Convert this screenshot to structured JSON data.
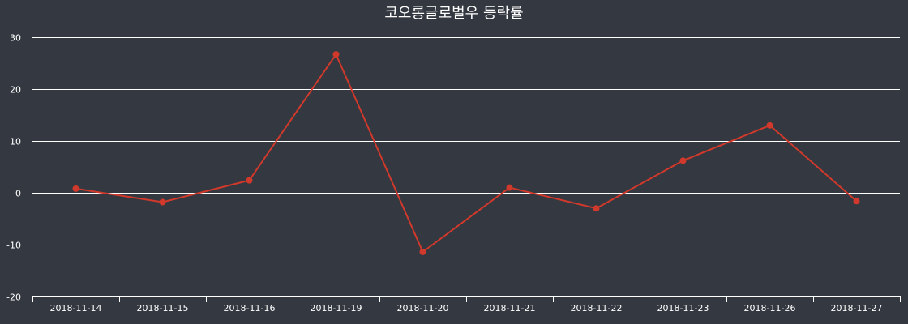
{
  "chart_data": {
    "type": "line",
    "title": "코오롱글로벌우 등락률",
    "categories": [
      "2018-11-14",
      "2018-11-15",
      "2018-11-16",
      "2018-11-19",
      "2018-11-20",
      "2018-11-21",
      "2018-11-22",
      "2018-11-23",
      "2018-11-26",
      "2018-11-27"
    ],
    "series": [
      {
        "values": [
          0.8,
          -1.8,
          2.4,
          26.7,
          -11.4,
          1.0,
          -3.0,
          6.2,
          13.0,
          -1.6
        ],
        "color": "#d0392b"
      }
    ],
    "ylim": [
      -20,
      30
    ],
    "yticks": [
      30,
      20,
      10,
      0,
      -10,
      -20
    ],
    "xlabel": "",
    "ylabel": "",
    "grid": true,
    "legend": "none",
    "colors": {
      "background": "#343840",
      "text": "#ffffff",
      "grid": "#ffffff"
    }
  }
}
